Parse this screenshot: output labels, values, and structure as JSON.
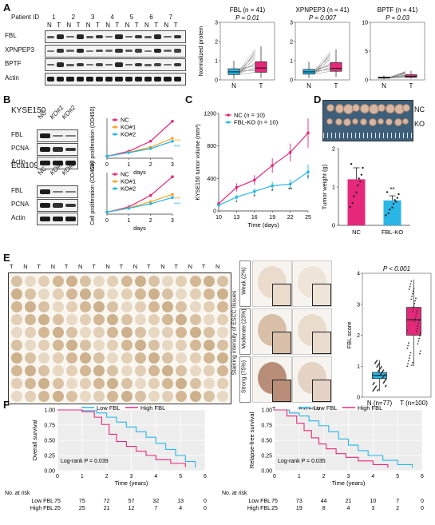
{
  "panels": {
    "A": {
      "label": "A",
      "patient_id_label": "Patient ID",
      "patient_ids": [
        "1",
        "2",
        "3",
        "4",
        "5",
        "6",
        "7"
      ],
      "lanes": [
        "N",
        "T",
        "N",
        "T",
        "N",
        "T",
        "N",
        "T",
        "N",
        "T",
        "N",
        "T",
        "N",
        "T"
      ],
      "rows": [
        "FBL",
        "XPNPEP3",
        "BPTF",
        "Actin"
      ]
    },
    "B": {
      "label": "B",
      "cell_lines": [
        "KYSE150",
        "Eca109"
      ],
      "lanes": [
        "NC",
        "KO#1",
        "KO#2"
      ],
      "rows": [
        "FBL",
        "PCNA",
        "Actin"
      ]
    },
    "C": {
      "label": "C"
    },
    "D": {
      "label": "D",
      "nc_label": "NC",
      "ko_label": "KO",
      "ruler_text": "cm"
    },
    "E": {
      "label": "E",
      "tn_header": [
        "T",
        "N",
        "T",
        "N",
        "T",
        "N",
        "T",
        "N",
        "T",
        "N",
        "T",
        "N",
        "T",
        "N",
        "T",
        "N"
      ],
      "side_title": "Staining intensity of ESCC tissues",
      "levels": [
        "Weak (2%)",
        "Moderate (23%)",
        "Strong (75%)"
      ],
      "col_labels": [
        "T",
        "Paired N"
      ]
    },
    "F": {
      "label": "F"
    }
  },
  "chart_data": [
    {
      "id": "A-FBL",
      "type": "box",
      "title": "FBL (n = 41)",
      "pvalue": "P = 0.01",
      "ylabel": "Normalized protein",
      "categories": [
        "N",
        "T"
      ],
      "ylim": [
        0,
        3
      ],
      "yticks": [
        0,
        1,
        2,
        3
      ],
      "boxes": [
        {
          "name": "N",
          "q1": 0.28,
          "median": 0.42,
          "q3": 0.58,
          "whisker_low": 0.05,
          "whisker_high": 1.0,
          "color": "#29b6e6"
        },
        {
          "name": "T",
          "q1": 0.4,
          "median": 0.62,
          "q3": 0.95,
          "whisker_low": 0.1,
          "whisker_high": 1.75,
          "color": "#e6287a"
        }
      ]
    },
    {
      "id": "A-XPNPEP3",
      "type": "box",
      "title": "XPNPEP3 (n = 41)",
      "pvalue": "P = 0.007",
      "categories": [
        "N",
        "T"
      ],
      "ylim": [
        0,
        3
      ],
      "yticks": [
        0,
        1,
        2,
        3
      ],
      "boxes": [
        {
          "name": "N",
          "q1": 0.3,
          "median": 0.42,
          "q3": 0.55,
          "whisker_low": 0.1,
          "whisker_high": 0.95,
          "color": "#29b6e6"
        },
        {
          "name": "T",
          "q1": 0.45,
          "median": 0.6,
          "q3": 0.9,
          "whisker_low": 0.15,
          "whisker_high": 1.6,
          "color": "#e6287a"
        }
      ]
    },
    {
      "id": "A-BPTF",
      "type": "box",
      "title": "BPTF (n = 41)",
      "pvalue": "P = 0.03",
      "categories": [
        "N",
        "T"
      ],
      "ylim": [
        0,
        10
      ],
      "yticks": [
        0,
        5,
        10
      ],
      "boxes": [
        {
          "name": "N",
          "q1": 0.3,
          "median": 0.4,
          "q3": 0.5,
          "whisker_low": 0.1,
          "whisker_high": 0.8,
          "color": "#29b6e6"
        },
        {
          "name": "T",
          "q1": 0.45,
          "median": 0.6,
          "q3": 0.9,
          "whisker_low": 0.2,
          "whisker_high": 1.6,
          "color": "#e6287a"
        }
      ]
    },
    {
      "id": "B-KYSE150",
      "type": "line",
      "ylabel": "Cell proliferation (OD450)",
      "x": [
        0,
        1,
        2,
        3
      ],
      "xticks": [
        "0",
        "1",
        "2",
        "3"
      ],
      "xlabel": "days",
      "ylim": [
        0,
        2.0
      ],
      "series": [
        {
          "name": "NC",
          "values": [
            0.1,
            0.35,
            0.85,
            1.85
          ],
          "color": "#e6287a"
        },
        {
          "name": "KO#1",
          "values": [
            0.1,
            0.3,
            0.55,
            1.0
          ],
          "color": "#f5a623"
        },
        {
          "name": "KO#2",
          "values": [
            0.1,
            0.28,
            0.48,
            0.85
          ],
          "color": "#29b6e6"
        }
      ],
      "annotations": [
        "***",
        "***"
      ]
    },
    {
      "id": "B-Eca109",
      "type": "line",
      "ylabel": "Cell proliferation (OD450)",
      "x": [
        0,
        1,
        2,
        3
      ],
      "xticks": [
        "0",
        "1",
        "2",
        "3"
      ],
      "xlabel": "days",
      "ylim": [
        0,
        2.0
      ],
      "series": [
        {
          "name": "NC",
          "values": [
            0.1,
            0.35,
            0.9,
            1.8
          ],
          "color": "#e6287a"
        },
        {
          "name": "KO#1",
          "values": [
            0.1,
            0.3,
            0.6,
            0.95
          ],
          "color": "#f5a623"
        },
        {
          "name": "KO#2",
          "values": [
            0.1,
            0.28,
            0.5,
            0.8
          ],
          "color": "#29b6e6"
        }
      ],
      "annotations": [
        "***",
        "***"
      ]
    },
    {
      "id": "C",
      "type": "line",
      "ylabel": "KYSE150 tumor volume (mm³)",
      "xlabel": "Time (days)",
      "x": [
        10,
        13,
        16,
        19,
        22,
        25
      ],
      "xticks": [
        "10",
        "13",
        "16",
        "19",
        "22",
        "25"
      ],
      "ylim": [
        0,
        1200
      ],
      "yticks": [
        "0",
        "400",
        "800",
        "1200"
      ],
      "series": [
        {
          "name": "NC (n = 10)",
          "values": [
            90,
            290,
            380,
            560,
            720,
            960
          ],
          "err": [
            15,
            50,
            60,
            90,
            110,
            180
          ],
          "color": "#e6287a"
        },
        {
          "name": "FBL-KO (n = 10)",
          "values": [
            70,
            170,
            240,
            310,
            330,
            480
          ],
          "err": [
            10,
            30,
            40,
            50,
            60,
            90
          ],
          "color": "#29b6e6"
        }
      ],
      "annotations": [
        "*",
        "*",
        "*",
        "**",
        "*"
      ]
    },
    {
      "id": "D",
      "type": "bar",
      "ylabel": "Tumor weight (g)",
      "categories": [
        "NC",
        "FBL-KO"
      ],
      "values": [
        1.2,
        0.65
      ],
      "err": [
        0.3,
        0.12
      ],
      "ylim": [
        0,
        2
      ],
      "yticks": [
        "0",
        "1",
        "2"
      ],
      "colors": [
        "#e6287a",
        "#29b6e6"
      ],
      "annotation": "**"
    },
    {
      "id": "E-score",
      "type": "box",
      "pvalue": "P < 0.001",
      "ylabel": "FBL score",
      "categories": [
        "N (n=77)",
        "T (n=100)"
      ],
      "ylim": [
        0,
        4
      ],
      "yticks": [
        "0",
        "1",
        "2",
        "3",
        "4"
      ],
      "boxes": [
        {
          "name": "N (n=77)",
          "q1": 0.6,
          "median": 0.7,
          "q3": 0.8,
          "whisker_low": 0.2,
          "whisker_high": 1.2,
          "color": "#29b6e6"
        },
        {
          "name": "T (n=100)",
          "q1": 2.0,
          "median": 2.5,
          "q3": 2.9,
          "whisker_low": 1.0,
          "whisker_high": 3.8,
          "color": "#e6287a"
        }
      ]
    },
    {
      "id": "F-OS",
      "type": "line",
      "ylabel": "Overall survival",
      "xlabel": "Time (years)",
      "xticks": [
        "0",
        "1",
        "2",
        "3",
        "4",
        "5",
        "6"
      ],
      "yticks": [
        "0.00",
        "0.25",
        "0.50",
        "0.75",
        "1.00"
      ],
      "ylim": [
        0,
        1
      ],
      "xlim": [
        0,
        6
      ],
      "pvalue": "Log-rank P = 0.039",
      "series": [
        {
          "name": "Low FBL",
          "color": "#29b6e6",
          "x": [
            0,
            1,
            1.6,
            2,
            2.4,
            2.8,
            3.2,
            3.6,
            4,
            4.4,
            4.8,
            5.2,
            5.6
          ],
          "values": [
            1,
            0.99,
            0.95,
            0.88,
            0.8,
            0.72,
            0.64,
            0.55,
            0.45,
            0.35,
            0.25,
            0.15,
            0.05
          ]
        },
        {
          "name": "High FBL",
          "color": "#e6287a",
          "x": [
            0,
            1,
            1.5,
            1.8,
            2.1,
            2.4,
            2.8,
            3.2,
            3.6,
            4,
            4.6,
            5.2
          ],
          "values": [
            1,
            0.97,
            0.88,
            0.76,
            0.6,
            0.48,
            0.4,
            0.32,
            0.25,
            0.18,
            0.12,
            0.06
          ]
        }
      ],
      "risk_table": {
        "title": "No. at risk",
        "rows": [
          {
            "name": "Low FBL",
            "values": [
              "75",
              "75",
              "72",
              "57",
              "32",
              "13",
              "0"
            ]
          },
          {
            "name": "High FBL",
            "values": [
              "25",
              "25",
              "21",
              "12",
              "7",
              "4",
              "0"
            ]
          }
        ]
      }
    },
    {
      "id": "F-RFS",
      "type": "line",
      "ylabel": "Relapse-free survival",
      "xlabel": "Time (years)",
      "xticks": [
        "0",
        "1",
        "2",
        "3",
        "4",
        "5",
        "6"
      ],
      "yticks": [
        "0.00",
        "0.25",
        "0.50",
        "0.75",
        "1.00"
      ],
      "ylim": [
        0,
        1
      ],
      "xlim": [
        0,
        6
      ],
      "pvalue": "Log-rank P = 0.035",
      "series": [
        {
          "name": "Low FBL",
          "color": "#29b6e6",
          "x": [
            0,
            0.6,
            1,
            1.4,
            1.8,
            2.2,
            2.6,
            3,
            3.4,
            3.8,
            4.4,
            5,
            5.6
          ],
          "values": [
            1,
            0.95,
            0.9,
            0.82,
            0.74,
            0.64,
            0.52,
            0.42,
            0.33,
            0.25,
            0.17,
            0.1,
            0.05
          ]
        },
        {
          "name": "High FBL",
          "color": "#e6287a",
          "x": [
            0,
            0.5,
            0.9,
            1.2,
            1.5,
            1.8,
            2.1,
            2.5,
            2.9,
            3.4,
            4,
            4.6
          ],
          "values": [
            1,
            0.9,
            0.78,
            0.66,
            0.54,
            0.44,
            0.36,
            0.28,
            0.22,
            0.16,
            0.1,
            0.05
          ]
        }
      ],
      "risk_table": {
        "title": "No. at risk",
        "rows": [
          {
            "name": "Low FBL",
            "values": [
              "75",
              "73",
              "44",
              "21",
              "10",
              "7",
              "0"
            ]
          },
          {
            "name": "High FBL",
            "values": [
              "25",
              "19",
              "8",
              "4",
              "3",
              "2",
              "0"
            ]
          }
        ]
      }
    }
  ]
}
